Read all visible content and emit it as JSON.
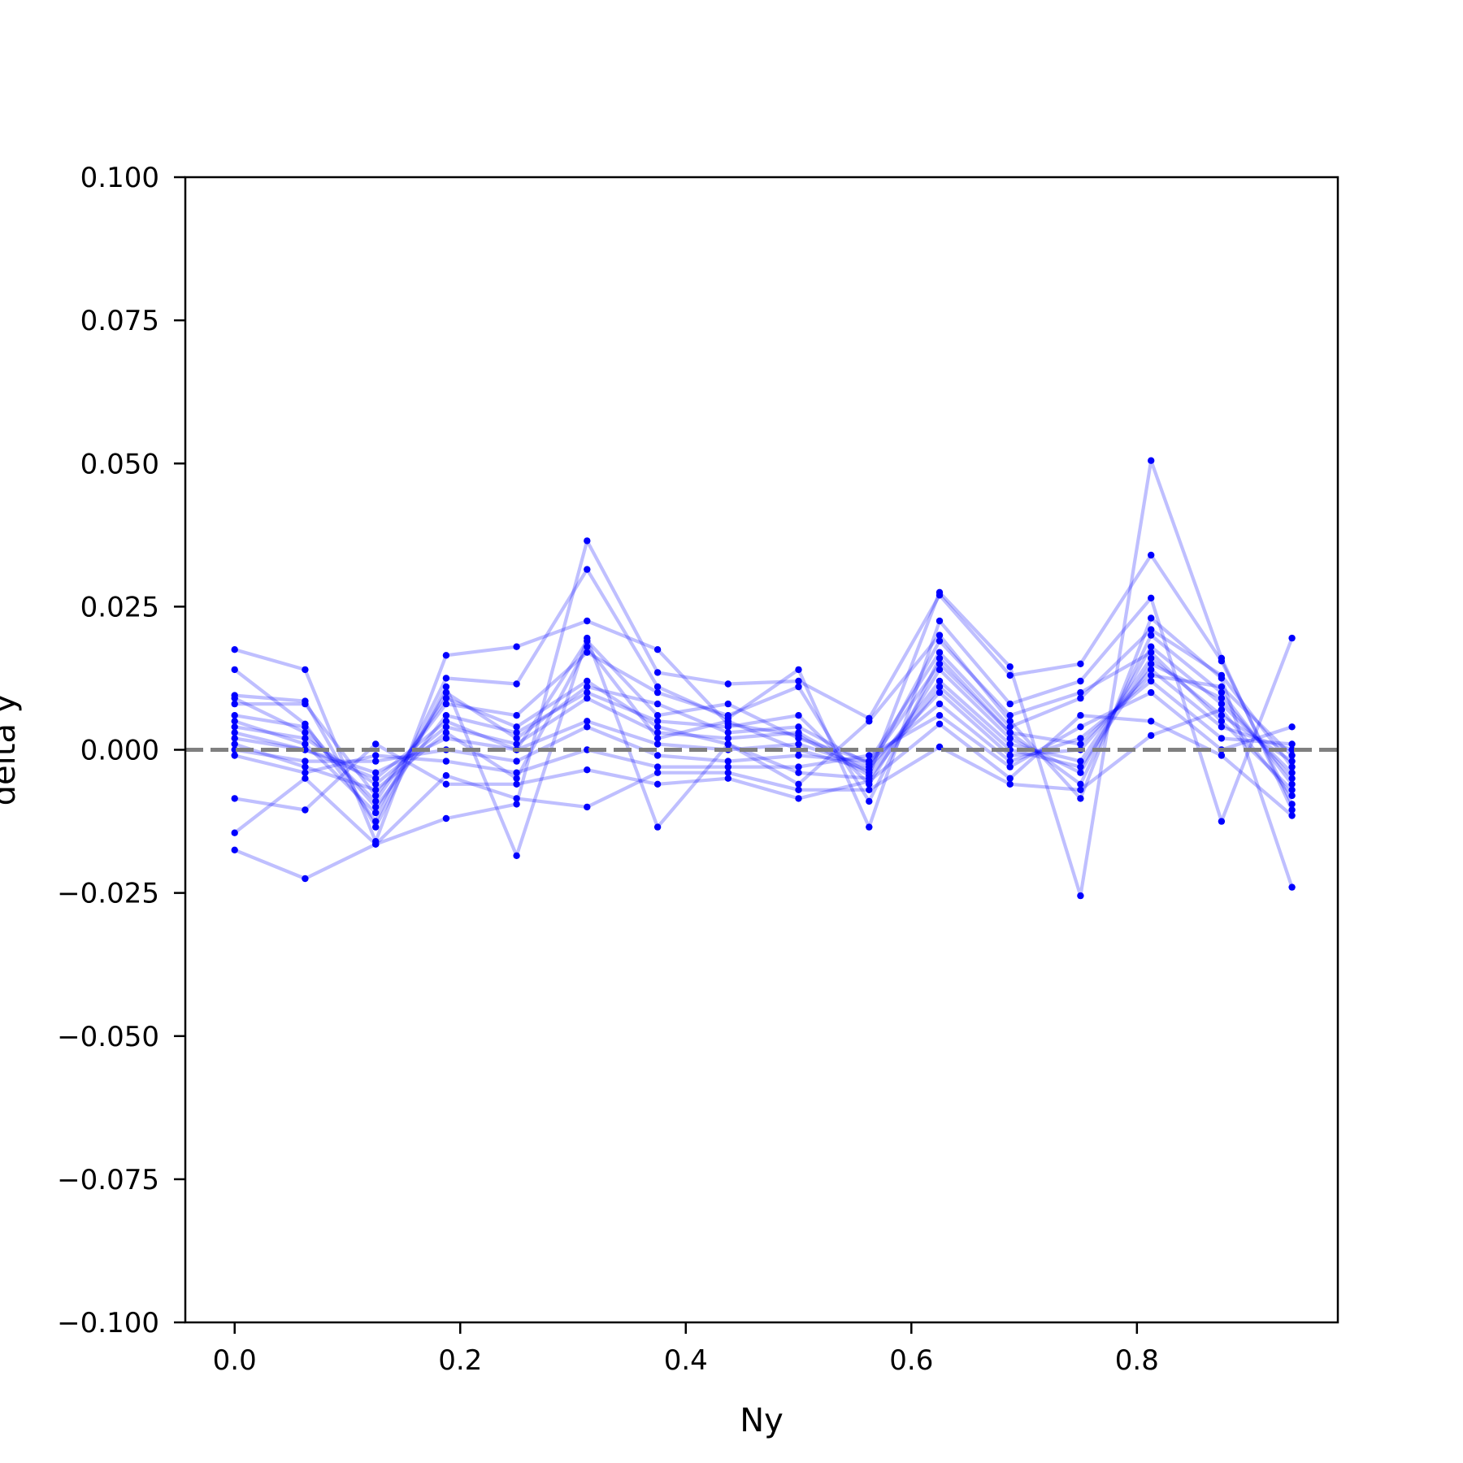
{
  "chart_data": {
    "type": "line",
    "xlabel": "Ny",
    "ylabel": "delta y",
    "xlim": [
      -0.04375,
      0.97813
    ],
    "ylim": [
      -0.1,
      0.1
    ],
    "x_ticks": [
      0.0,
      0.2,
      0.4,
      0.6,
      0.8
    ],
    "x_tick_labels": [
      "0.0",
      "0.2",
      "0.4",
      "0.6",
      "0.8"
    ],
    "y_ticks": [
      0.1,
      0.075,
      0.05,
      0.025,
      0.0,
      -0.025,
      -0.05,
      -0.075,
      -0.1
    ],
    "y_tick_labels": [
      "0.100",
      "0.075",
      "0.050",
      "0.025",
      "0.000",
      "−0.025",
      "−0.050",
      "−0.075",
      "−0.100"
    ],
    "grid": false,
    "reference_line": {
      "y": 0.0,
      "style": "dashed",
      "color": "#808080"
    },
    "series_color": "#0000ff",
    "x": [
      0.0,
      0.0625,
      0.125,
      0.1875,
      0.25,
      0.3125,
      0.375,
      0.4375,
      0.5,
      0.5625,
      0.625,
      0.6875,
      0.75,
      0.8125,
      0.875,
      0.9375
    ],
    "series": [
      {
        "values": [
          0.0175,
          0.014,
          -0.016,
          0.0165,
          0.018,
          0.0225,
          0.0175,
          0.0045,
          0.0025,
          -0.0045,
          0.0275,
          0.0145,
          -0.0255,
          0.0505,
          0.016,
          -0.0105
        ]
      },
      {
        "values": [
          -0.0175,
          -0.0225,
          -0.0165,
          -0.012,
          -0.0095,
          0.0365,
          0.0135,
          0.0115,
          0.012,
          0.0055,
          0.027,
          0.013,
          0.015,
          0.034,
          0.0155,
          -0.0095
        ]
      },
      {
        "values": [
          0.014,
          0.0045,
          -0.0125,
          0.0125,
          0.0115,
          0.0315,
          0.011,
          0.0055,
          0.014,
          -0.0135,
          0.0225,
          0.008,
          0.012,
          0.0265,
          -0.0125,
          0.0195
        ]
      },
      {
        "values": [
          0.0095,
          0.0085,
          -0.0135,
          0.011,
          -0.0185,
          0.0195,
          -0.0135,
          0.001,
          -0.006,
          0.005,
          0.02,
          0.005,
          -0.0085,
          0.023,
          0.0125,
          -0.024
        ]
      },
      {
        "values": [
          0.008,
          0.008,
          -0.008,
          0.008,
          0.006,
          0.017,
          0.01,
          0.006,
          0.011,
          -0.009,
          0.016,
          0.003,
          -0.006,
          0.02,
          0.01,
          -0.006
        ]
      },
      {
        "values": [
          0.006,
          0.004,
          -0.01,
          0.006,
          0.003,
          0.01,
          0.005,
          0.004,
          0.006,
          -0.006,
          0.014,
          0.002,
          -0.004,
          0.018,
          0.008,
          -0.004
        ]
      },
      {
        "values": [
          0.004,
          0.002,
          -0.006,
          0.004,
          0.001,
          0.009,
          0.003,
          0.002,
          0.003,
          -0.004,
          0.012,
          0.001,
          -0.002,
          0.016,
          0.006,
          -0.002
        ]
      },
      {
        "values": [
          0.002,
          0.0,
          -0.004,
          0.002,
          0.0,
          0.005,
          0.001,
          0.0,
          0.001,
          -0.003,
          0.01,
          -0.001,
          0.0,
          0.014,
          0.004,
          0.0
        ]
      },
      {
        "values": [
          0.0,
          -0.002,
          -0.002,
          0.0,
          -0.002,
          0.004,
          -0.001,
          -0.002,
          -0.001,
          -0.002,
          0.008,
          -0.002,
          0.002,
          0.012,
          0.002,
          0.001
        ]
      },
      {
        "values": [
          -0.001,
          -0.004,
          -0.001,
          -0.002,
          -0.004,
          0.0,
          -0.003,
          -0.003,
          -0.003,
          -0.001,
          0.006,
          -0.003,
          0.004,
          0.01,
          0.0,
          0.004
        ]
      },
      {
        "values": [
          -0.0085,
          -0.0105,
          0.001,
          -0.006,
          -0.006,
          -0.0035,
          -0.006,
          -0.005,
          -0.0085,
          -0.0055,
          0.0045,
          -0.005,
          0.006,
          0.005,
          -0.001,
          -0.0115
        ]
      },
      {
        "values": [
          -0.0145,
          -0.005,
          -0.0165,
          -0.0045,
          -0.0085,
          -0.01,
          -0.004,
          -0.004,
          -0.007,
          -0.007,
          0.0005,
          -0.006,
          -0.007,
          0.0025,
          0.007,
          -0.008
        ]
      },
      {
        "values": [
          0.003,
          0.0,
          -0.005,
          0.005,
          0.0,
          0.019,
          0.006,
          0.008,
          0.002,
          -0.002,
          0.017,
          0.004,
          0.009,
          0.021,
          0.013,
          -0.003
        ]
      },
      {
        "values": [
          0.009,
          0.003,
          -0.009,
          0.009,
          0.004,
          0.012,
          0.004,
          0.001,
          -0.004,
          -0.005,
          0.011,
          0.0,
          -0.003,
          0.015,
          0.009,
          -0.005
        ]
      },
      {
        "values": [
          0.001,
          -0.003,
          -0.007,
          0.003,
          -0.005,
          0.018,
          0.002,
          0.005,
          0.0,
          -0.0035,
          0.019,
          0.006,
          0.01,
          0.017,
          0.005,
          -0.007
        ]
      },
      {
        "values": [
          0.005,
          0.001,
          -0.011,
          0.01,
          0.002,
          0.011,
          0.008,
          0.003,
          0.004,
          -0.0025,
          0.015,
          0.003,
          0.001,
          0.013,
          0.011,
          -0.001
        ]
      }
    ]
  }
}
